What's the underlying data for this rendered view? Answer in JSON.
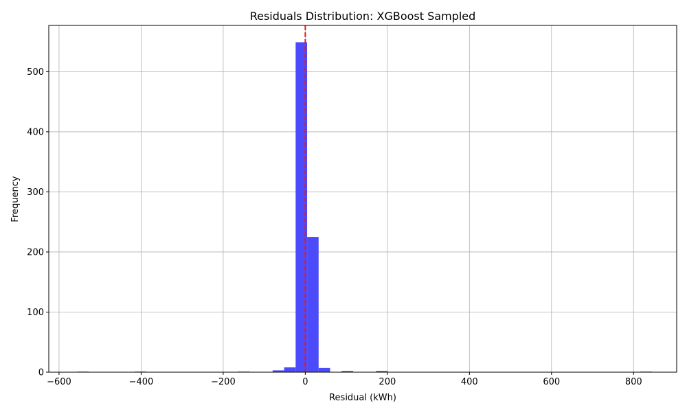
{
  "chart_data": {
    "type": "bar",
    "title": "Residuals Distribution: XGBoost Sampled",
    "xlabel": "Residual (kWh)",
    "ylabel": "Frequency",
    "xlim": [
      -625,
      905
    ],
    "ylim": [
      0,
      577
    ],
    "x_ticks": [
      -600,
      -400,
      -200,
      0,
      200,
      400,
      600,
      800
    ],
    "y_ticks": [
      0,
      100,
      200,
      300,
      400,
      500
    ],
    "grid": true,
    "bar_color": "#4b4bfb",
    "reference_line": {
      "x": 0,
      "color": "#e41a1c",
      "style": "dashed"
    },
    "bins": [
      {
        "x0": -555.5,
        "x1": -527.5,
        "count": 1
      },
      {
        "x0": -415.5,
        "x1": -387.5,
        "count": 1
      },
      {
        "x0": -163.5,
        "x1": -135.5,
        "count": 1
      },
      {
        "x0": -79.5,
        "x1": -51.5,
        "count": 3
      },
      {
        "x0": -51.5,
        "x1": -23.5,
        "count": 8
      },
      {
        "x0": -23.5,
        "x1": 4.5,
        "count": 549
      },
      {
        "x0": 4.5,
        "x1": 32.5,
        "count": 225
      },
      {
        "x0": 32.5,
        "x1": 60.5,
        "count": 7
      },
      {
        "x0": 88.5,
        "x1": 116.5,
        "count": 2
      },
      {
        "x0": 172.5,
        "x1": 200.5,
        "count": 2
      },
      {
        "x0": 816.5,
        "x1": 844.5,
        "count": 1
      }
    ]
  }
}
